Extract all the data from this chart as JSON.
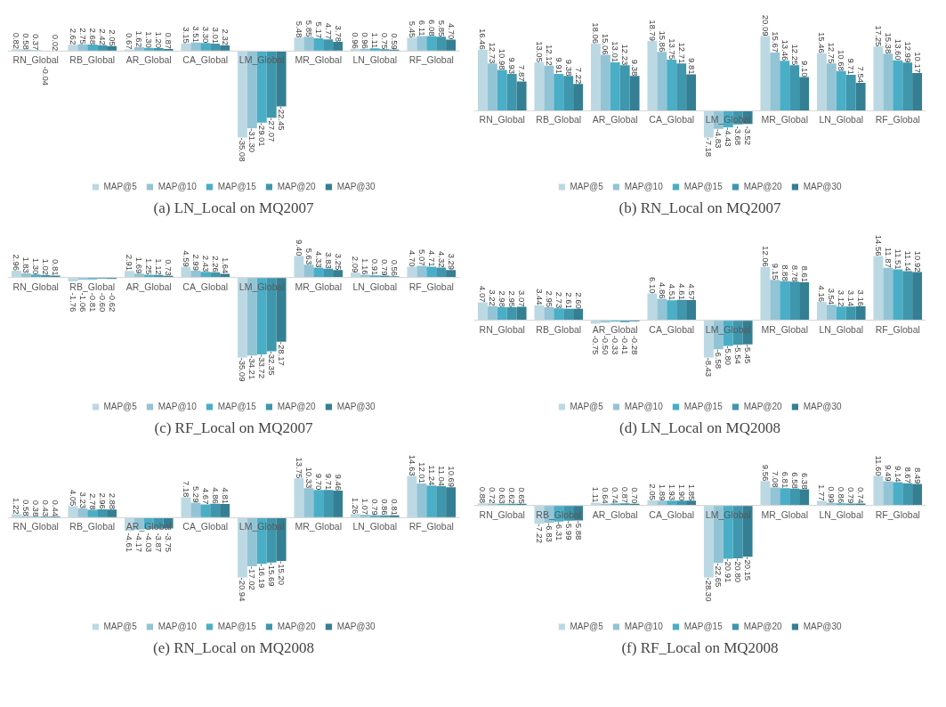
{
  "chart_data": [
    {
      "type": "bar",
      "title": "(a) LN_Local on MQ2007",
      "legend": "bottom",
      "categories": [
        "RN_Global",
        "RB_Global",
        "AR_Global",
        "CA_Global",
        "LM_Global",
        "MR_Global",
        "LN_Global",
        "RF_Global"
      ],
      "series": [
        {
          "name": "MAP@5",
          "color": "#bcd9e3",
          "values": [
            0.82,
            2.62,
            0.67,
            3.15,
            -35.08,
            5.48,
            0.96,
            5.45
          ],
          "value_labels": [
            "0.82",
            "2.62",
            "0.67",
            "3.15",
            "-35.08",
            "5.48",
            "0.96",
            "5.45"
          ]
        },
        {
          "name": "MAP@10",
          "color": "#93c4d5",
          "values": [
            0.58,
            2.75,
            1.62,
            3.51,
            -31.3,
            5.85,
            0.96,
            6.11
          ],
          "value_labels": [
            "0.58",
            "2.75",
            "1.62",
            "3.51",
            "-31.30",
            "5.85",
            "0.96",
            "6.11"
          ]
        },
        {
          "name": "MAP@15",
          "color": "#4aaec7",
          "values": [
            0.37,
            2.68,
            1.3,
            3.3,
            -29.01,
            5.17,
            1.11,
            6.08
          ],
          "value_labels": [
            "0.37",
            "2.68",
            "1.30",
            "3.30",
            "-29.01",
            "5.17",
            "1.11",
            "6.08"
          ]
        },
        {
          "name": "MAP@20",
          "color": "#3e97ad",
          "values": [
            -0.04,
            2.42,
            1.2,
            3.01,
            -27.07,
            4.77,
            0.75,
            5.85
          ],
          "value_labels": [
            "-0.04",
            "2.42",
            "1.20",
            "3.01",
            "-27.07",
            "4.77",
            "0.75",
            "5.85"
          ]
        },
        {
          "name": "MAP@30",
          "color": "#347f93",
          "values": [
            0.02,
            2.05,
            0.87,
            2.32,
            -22.45,
            3.78,
            0.59,
            4.7
          ],
          "value_labels": [
            "0.02",
            "2.05",
            "0.87",
            "2.32",
            "-22.45",
            "3.78",
            "0.59",
            "4.70"
          ]
        }
      ]
    },
    {
      "type": "bar",
      "title": "(b) RN_Local on MQ2007",
      "legend": "bottom",
      "categories": [
        "RN_Global",
        "RB_Global",
        "AR_Global",
        "CA_Global",
        "LM_Global",
        "MR_Global",
        "LN_Global",
        "RF_Global"
      ],
      "series": [
        {
          "name": "MAP@5",
          "color": "#bcd9e3",
          "values": [
            16.46,
            13.05,
            18.06,
            18.79,
            -7.18,
            20.09,
            15.46,
            17.25
          ],
          "value_labels": [
            "16.46",
            "13.05",
            "18.06",
            "18.79",
            "-7.18",
            "20.09",
            "15.46",
            "17.25"
          ]
        },
        {
          "name": "MAP@10",
          "color": "#93c4d5",
          "values": [
            12.73,
            12.12,
            15.06,
            15.86,
            -4.83,
            15.67,
            12.75,
            15.38
          ],
          "value_labels": [
            "12.73",
            "12.12",
            "15.06",
            "15.86",
            "-4.83",
            "15.67",
            "12.75",
            "15.38"
          ]
        },
        {
          "name": "MAP@15",
          "color": "#4aaec7",
          "values": [
            10.98,
            9.91,
            13.01,
            13.75,
            -4.43,
            13.46,
            10.68,
            13.6
          ],
          "value_labels": [
            "10.98",
            "9.91",
            "13.01",
            "13.75",
            "-4.43",
            "13.46",
            "10.68",
            "13.60"
          ]
        },
        {
          "name": "MAP@20",
          "color": "#3e97ad",
          "values": [
            9.93,
            9.38,
            12.23,
            12.71,
            -3.68,
            12.25,
            9.71,
            12.99
          ],
          "value_labels": [
            "9.93",
            "9.38",
            "12.23",
            "12.71",
            "-3.68",
            "12.25",
            "9.71",
            "12.99"
          ]
        },
        {
          "name": "MAP@30",
          "color": "#347f93",
          "values": [
            7.87,
            7.22,
            9.38,
            9.81,
            -3.52,
            9.1,
            7.54,
            10.17
          ],
          "value_labels": [
            "7.87",
            "7.22",
            "9.38",
            "9.81",
            "-3.52",
            "9.10",
            "7.54",
            "10.17"
          ]
        }
      ]
    },
    {
      "type": "bar",
      "title": "(c) RF_Local on MQ2007",
      "legend": "bottom",
      "categories": [
        "RN_Global",
        "RB_Global",
        "AR_Global",
        "CA_Global",
        "LM_Global",
        "MR_Global",
        "LN_Global",
        "RF_Global"
      ],
      "series": [
        {
          "name": "MAP@5",
          "color": "#bcd9e3",
          "values": [
            2.96,
            -1.76,
            2.91,
            4.59,
            -35.09,
            9.4,
            2.09,
            4.7
          ],
          "value_labels": [
            "2.96",
            "-1.76",
            "2.91",
            "4.59",
            "-35.09",
            "9.40",
            "2.09",
            "4.70"
          ]
        },
        {
          "name": "MAP@10",
          "color": "#93c4d5",
          "values": [
            1.83,
            -1.06,
            1.69,
            2.99,
            -34.21,
            5.63,
            1.16,
            5.07
          ],
          "value_labels": [
            "1.83",
            "-1.06",
            "1.69",
            "2.99",
            "-34.21",
            "5.63",
            "1.16",
            "5.07"
          ]
        },
        {
          "name": "MAP@15",
          "color": "#4aaec7",
          "values": [
            1.3,
            -0.81,
            1.25,
            2.43,
            -33.72,
            4.33,
            0.91,
            4.71
          ],
          "value_labels": [
            "1.30",
            "-0.81",
            "1.25",
            "2.43",
            "-33.72",
            "4.33",
            "0.91",
            "4.71"
          ]
        },
        {
          "name": "MAP@20",
          "color": "#3e97ad",
          "values": [
            1.02,
            -0.6,
            1.12,
            2.26,
            -32.35,
            3.83,
            0.79,
            4.32
          ],
          "value_labels": [
            "1.02",
            "-0.60",
            "1.12",
            "2.26",
            "-32.35",
            "3.83",
            "0.79",
            "4.32"
          ]
        },
        {
          "name": "MAP@30",
          "color": "#347f93",
          "values": [
            0.81,
            -0.62,
            0.73,
            1.64,
            -28.17,
            3.25,
            0.56,
            3.29
          ],
          "value_labels": [
            "0.81",
            "-0.62",
            "0.73",
            "1.64",
            "-28.17",
            "3.25",
            "0.56",
            "3.29"
          ]
        }
      ]
    },
    {
      "type": "bar",
      "title": "(d) LN_Local on MQ2008",
      "legend": "bottom",
      "categories": [
        "RN_Global",
        "RB_Global",
        "AR_Global",
        "CA_Global",
        "LM_Global",
        "MR_Global",
        "LN_Global",
        "RF_Global"
      ],
      "series": [
        {
          "name": "MAP@5",
          "color": "#bcd9e3",
          "values": [
            4.07,
            3.44,
            -0.75,
            6.1,
            -8.43,
            12.06,
            4.16,
            14.56
          ],
          "value_labels": [
            "4.07",
            "3.44",
            "-0.75",
            "6.10",
            "-8.43",
            "12.06",
            "4.16",
            "14.56"
          ]
        },
        {
          "name": "MAP@10",
          "color": "#93c4d5",
          "values": [
            3.22,
            2.95,
            -0.5,
            4.86,
            -6.58,
            9.15,
            3.54,
            11.87
          ],
          "value_labels": [
            "3.22",
            "2.95",
            "-0.50",
            "4.86",
            "-6.58",
            "9.15",
            "3.54",
            "11.87"
          ]
        },
        {
          "name": "MAP@15",
          "color": "#4aaec7",
          "values": [
            2.98,
            2.73,
            -0.33,
            4.51,
            -5.8,
            8.88,
            3.12,
            11.51
          ],
          "value_labels": [
            "2.98",
            "2.73",
            "-0.33",
            "4.51",
            "-5.80",
            "8.88",
            "3.12",
            "11.51"
          ]
        },
        {
          "name": "MAP@20",
          "color": "#3e97ad",
          "values": [
            2.95,
            2.61,
            -0.41,
            4.61,
            -5.54,
            8.78,
            3.14,
            11.14
          ],
          "value_labels": [
            "2.95",
            "2.61",
            "-0.41",
            "4.61",
            "-5.54",
            "8.78",
            "3.14",
            "11.14"
          ]
        },
        {
          "name": "MAP@30",
          "color": "#347f93",
          "values": [
            3.07,
            2.6,
            -0.28,
            4.57,
            -5.45,
            8.61,
            3.16,
            10.92
          ],
          "value_labels": [
            "3.07",
            "2.60",
            "-0.28",
            "4.57",
            "-5.45",
            "8.61",
            "3.16",
            "10.92"
          ]
        }
      ]
    },
    {
      "type": "bar",
      "title": "(e) RN_Local on MQ2008",
      "legend": "bottom",
      "categories": [
        "RN_Global",
        "RB_Global",
        "AR_Global",
        "CA_Global",
        "LM_Global",
        "MR_Global",
        "LN_Global",
        "RF_Global"
      ],
      "series": [
        {
          "name": "MAP@5",
          "color": "#bcd9e3",
          "values": [
            1.22,
            4.05,
            -4.61,
            7.18,
            -20.94,
            13.75,
            1.26,
            14.63
          ],
          "value_labels": [
            "1.22",
            "4.05",
            "-4.61",
            "7.18",
            "-20.94",
            "13.75",
            "1.26",
            "14.63"
          ]
        },
        {
          "name": "MAP@10",
          "color": "#93c4d5",
          "values": [
            0.58,
            3.23,
            -4.17,
            5.29,
            -17.02,
            10.33,
            1.07,
            12.01
          ],
          "value_labels": [
            "0.58",
            "3.23",
            "-4.17",
            "5.29",
            "-17.02",
            "10.33",
            "1.07",
            "12.01"
          ]
        },
        {
          "name": "MAP@15",
          "color": "#4aaec7",
          "values": [
            0.38,
            2.78,
            -4.03,
            4.67,
            -16.19,
            9.7,
            0.79,
            11.24
          ],
          "value_labels": [
            "0.38",
            "2.78",
            "-4.03",
            "4.67",
            "-16.19",
            "9.70",
            "0.79",
            "11.24"
          ]
        },
        {
          "name": "MAP@20",
          "color": "#3e97ad",
          "values": [
            0.43,
            2.96,
            -3.87,
            4.86,
            -15.69,
            9.71,
            0.86,
            11.04
          ],
          "value_labels": [
            "0.43",
            "2.96",
            "-3.87",
            "4.86",
            "-15.69",
            "9.71",
            "0.86",
            "11.04"
          ]
        },
        {
          "name": "MAP@30",
          "color": "#347f93",
          "values": [
            0.44,
            2.88,
            -3.75,
            4.81,
            -15.2,
            9.46,
            0.81,
            10.69
          ],
          "value_labels": [
            "0.44",
            "2.88",
            "-3.75",
            "4.81",
            "-15.20",
            "9.46",
            "0.81",
            "10.69"
          ]
        }
      ]
    },
    {
      "type": "bar",
      "title": "(f) RF_Local on MQ2008",
      "legend": "bottom",
      "categories": [
        "RN_Global",
        "RB_Global",
        "AR_Global",
        "CA_Global",
        "LM_Global",
        "MR_Global",
        "LN_Global",
        "RF_Global"
      ],
      "series": [
        {
          "name": "MAP@5",
          "color": "#bcd9e3",
          "values": [
            0.88,
            -7.22,
            1.11,
            2.05,
            -28.3,
            9.56,
            1.77,
            11.6
          ],
          "value_labels": [
            "0.88",
            "-7.22",
            "1.11",
            "2.05",
            "-28.30",
            "9.56",
            "1.77",
            "11.60"
          ]
        },
        {
          "name": "MAP@10",
          "color": "#93c4d5",
          "values": [
            0.72,
            -6.83,
            0.64,
            1.89,
            -22.65,
            7.08,
            0.99,
            9.49
          ],
          "value_labels": [
            "0.72",
            "-6.83",
            "0.64",
            "1.89",
            "-22.65",
            "7.08",
            "0.99",
            "9.49"
          ]
        },
        {
          "name": "MAP@15",
          "color": "#4aaec7",
          "values": [
            0.63,
            -6.31,
            0.74,
            1.93,
            -20.91,
            6.81,
            0.86,
            9.14
          ],
          "value_labels": [
            "0.63",
            "-6.31",
            "0.74",
            "1.93",
            "-20.91",
            "6.81",
            "0.86",
            "9.14"
          ]
        },
        {
          "name": "MAP@20",
          "color": "#3e97ad",
          "values": [
            0.62,
            -5.99,
            0.87,
            1.9,
            -20.8,
            6.58,
            0.79,
            8.67
          ],
          "value_labels": [
            "0.62",
            "-5.99",
            "0.87",
            "1.90",
            "-20.80",
            "6.58",
            "0.79",
            "8.67"
          ]
        },
        {
          "name": "MAP@30",
          "color": "#347f93",
          "values": [
            0.65,
            -5.88,
            0.7,
            1.85,
            -20.15,
            6.38,
            0.74,
            8.49
          ],
          "value_labels": [
            "0.65",
            "-5.88",
            "0.70",
            "1.85",
            "-20.15",
            "6.38",
            "0.74",
            "8.49"
          ]
        }
      ]
    }
  ]
}
